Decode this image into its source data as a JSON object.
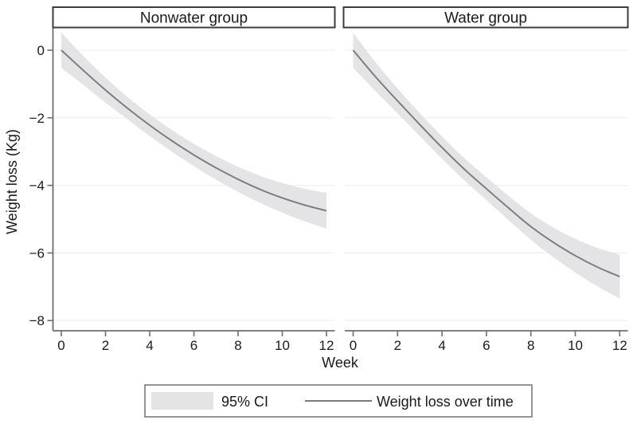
{
  "chart_data": {
    "type": "line",
    "xlabel": "Week",
    "ylabel": "Weight loss (Kg)",
    "x": [
      0,
      1,
      2,
      3,
      4,
      5,
      6,
      7,
      8,
      9,
      10,
      11,
      12
    ],
    "x_ticks": [
      0,
      2,
      4,
      6,
      8,
      10,
      12
    ],
    "y_ticks": [
      0,
      -2,
      -4,
      -6,
      -8
    ],
    "y_tick_labels": [
      "0",
      "−2",
      "−4",
      "−6",
      "−8"
    ],
    "xlim": [
      -0.4,
      12.4
    ],
    "ylim": [
      -8.3,
      0.66
    ],
    "grid": "horizontal-faint",
    "legend_position": "bottom",
    "series_names": [
      "95% CI",
      "Weight loss over time"
    ],
    "facets": [
      {
        "title": "Nonwater group",
        "mean": [
          0,
          -0.6,
          -1.18,
          -1.72,
          -2.22,
          -2.68,
          -3.1,
          -3.48,
          -3.82,
          -4.12,
          -4.37,
          -4.58,
          -4.75
        ],
        "ci_upper": [
          0.52,
          -0.17,
          -0.81,
          -1.39,
          -1.9,
          -2.36,
          -2.77,
          -3.13,
          -3.45,
          -3.72,
          -3.93,
          -4.1,
          -4.22
        ],
        "ci_lower": [
          -0.52,
          -1.03,
          -1.55,
          -2.05,
          -2.54,
          -3.0,
          -3.43,
          -3.83,
          -4.19,
          -4.52,
          -4.81,
          -5.06,
          -5.28
        ]
      },
      {
        "title": "Water group",
        "mean": [
          0,
          -0.78,
          -1.5,
          -2.2,
          -2.88,
          -3.52,
          -4.1,
          -4.67,
          -5.22,
          -5.68,
          -6.08,
          -6.42,
          -6.7
        ],
        "ci_upper": [
          0.52,
          -0.35,
          -1.13,
          -1.86,
          -2.55,
          -3.19,
          -3.76,
          -4.31,
          -4.83,
          -5.24,
          -5.58,
          -5.85,
          -6.05
        ],
        "ci_lower": [
          -0.52,
          -1.21,
          -1.87,
          -2.54,
          -3.21,
          -3.85,
          -4.44,
          -5.03,
          -5.61,
          -6.12,
          -6.58,
          -6.99,
          -7.35
        ]
      }
    ]
  },
  "legend": {
    "items": [
      {
        "label": "95% CI",
        "swatch": "band"
      },
      {
        "label": "Weight loss over time",
        "swatch": "line"
      }
    ]
  },
  "colors": {
    "band": "#e4e4e6",
    "line": "#7a7a7a",
    "axis": "#6e6e6e",
    "grid": "#f0f0ee",
    "text": "#1a1a1a",
    "panel_border": "#3c3c3c",
    "legend_border": "#7a7a7a",
    "background": "#ffffff"
  }
}
